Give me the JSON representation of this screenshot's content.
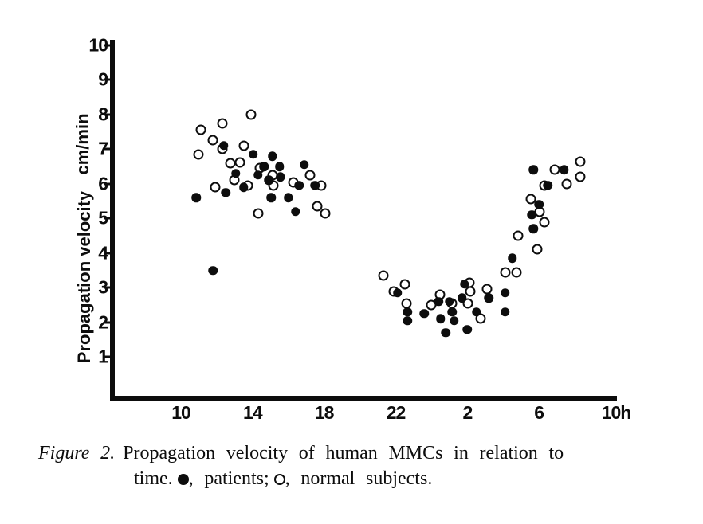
{
  "figure_caption": {
    "label": "Figure 2.",
    "line1": "Propagation velocity of human MMCs in relation to",
    "line2_pre": "time.",
    "legend": [
      {
        "marker": "filled-circle-icon",
        "text": ", patients;"
      },
      {
        "marker": "open-circle-icon",
        "text": ", normal subjects."
      }
    ]
  },
  "chart_data": {
    "type": "scatter",
    "title": "Propagation velocity of human MMCs in relation to time",
    "ylabel": "Propagation velocity",
    "y_unit_label": "cm/min",
    "x_axis": {
      "tick_labels": [
        "10",
        "14",
        "18",
        "22",
        "2",
        "6",
        "10"
      ],
      "last_tick_suffix": "h",
      "start_hour": 10,
      "hours_span": 24,
      "grid": false
    },
    "y_axis": {
      "tick_labels": [
        "1",
        "2",
        "3",
        "4",
        "5",
        "6",
        "7",
        "8",
        "9",
        "10"
      ],
      "min": 0,
      "max": 10,
      "grid": false
    },
    "series": [
      {
        "name": "patients",
        "marker": "filled-circle",
        "points_hour_value": [
          [
            12.4,
            7.1
          ],
          [
            14.05,
            6.85
          ],
          [
            15.1,
            6.8
          ],
          [
            13.05,
            6.3
          ],
          [
            14.65,
            6.5
          ],
          [
            15.5,
            6.5
          ],
          [
            14.3,
            6.25
          ],
          [
            14.9,
            6.1
          ],
          [
            15.55,
            6.2
          ],
          [
            16.9,
            6.55
          ],
          [
            16.6,
            5.95
          ],
          [
            17.5,
            5.95
          ],
          [
            13.5,
            5.9
          ],
          [
            12.5,
            5.75
          ],
          [
            10.85,
            5.6
          ],
          [
            15.05,
            5.6
          ],
          [
            16.0,
            5.6
          ],
          [
            16.4,
            5.2
          ],
          [
            11.8,
            3.5
          ],
          [
            22.1,
            2.85
          ],
          [
            22.65,
            2.3
          ],
          [
            22.65,
            2.05
          ],
          [
            23.6,
            2.25
          ],
          [
            0.4,
            2.6
          ],
          [
            0.5,
            2.1
          ],
          [
            0.8,
            1.7
          ],
          [
            1.0,
            2.6
          ],
          [
            1.15,
            2.3
          ],
          [
            1.25,
            2.05
          ],
          [
            1.7,
            2.7
          ],
          [
            1.85,
            3.1
          ],
          [
            2.0,
            1.8
          ],
          [
            2.5,
            2.3
          ],
          [
            3.2,
            2.7
          ],
          [
            4.1,
            2.85
          ],
          [
            4.1,
            2.3
          ],
          [
            4.5,
            3.85
          ],
          [
            5.7,
            6.4
          ],
          [
            6.0,
            5.4
          ],
          [
            5.6,
            5.1
          ],
          [
            5.7,
            4.7
          ],
          [
            6.5,
            5.95
          ],
          [
            7.4,
            6.4
          ]
        ]
      },
      {
        "name": "normal subjects",
        "marker": "open-circle",
        "points_hour_value": [
          [
            13.9,
            8.0
          ],
          [
            12.3,
            7.75
          ],
          [
            11.1,
            7.55
          ],
          [
            11.8,
            7.25
          ],
          [
            12.3,
            7.0
          ],
          [
            13.5,
            7.1
          ],
          [
            11.0,
            6.85
          ],
          [
            12.75,
            6.6
          ],
          [
            13.3,
            6.62
          ],
          [
            14.4,
            6.45
          ],
          [
            15.1,
            6.25
          ],
          [
            15.15,
            5.95
          ],
          [
            17.2,
            6.25
          ],
          [
            16.3,
            6.05
          ],
          [
            17.85,
            5.95
          ],
          [
            13.0,
            6.12
          ],
          [
            13.75,
            5.95
          ],
          [
            11.9,
            5.9
          ],
          [
            14.3,
            5.15
          ],
          [
            17.6,
            5.35
          ],
          [
            18.05,
            5.15
          ],
          [
            21.3,
            3.35
          ],
          [
            22.5,
            3.1
          ],
          [
            21.9,
            2.9
          ],
          [
            22.6,
            2.55
          ],
          [
            0.0,
            2.5
          ],
          [
            0.45,
            2.8
          ],
          [
            1.15,
            2.55
          ],
          [
            2.05,
            2.55
          ],
          [
            2.1,
            3.15
          ],
          [
            2.15,
            2.9
          ],
          [
            2.75,
            2.1
          ],
          [
            3.1,
            2.95
          ],
          [
            4.1,
            3.45
          ],
          [
            4.75,
            3.45
          ],
          [
            4.85,
            4.5
          ],
          [
            5.55,
            5.55
          ],
          [
            6.05,
            5.2
          ],
          [
            6.3,
            4.9
          ],
          [
            5.9,
            4.1
          ],
          [
            6.3,
            5.95
          ],
          [
            6.9,
            6.4
          ],
          [
            8.3,
            6.65
          ],
          [
            8.3,
            6.2
          ],
          [
            7.55,
            6.0
          ]
        ]
      }
    ],
    "colors": {
      "ink": "#0d0d0d",
      "paper": "#ffffff"
    }
  }
}
